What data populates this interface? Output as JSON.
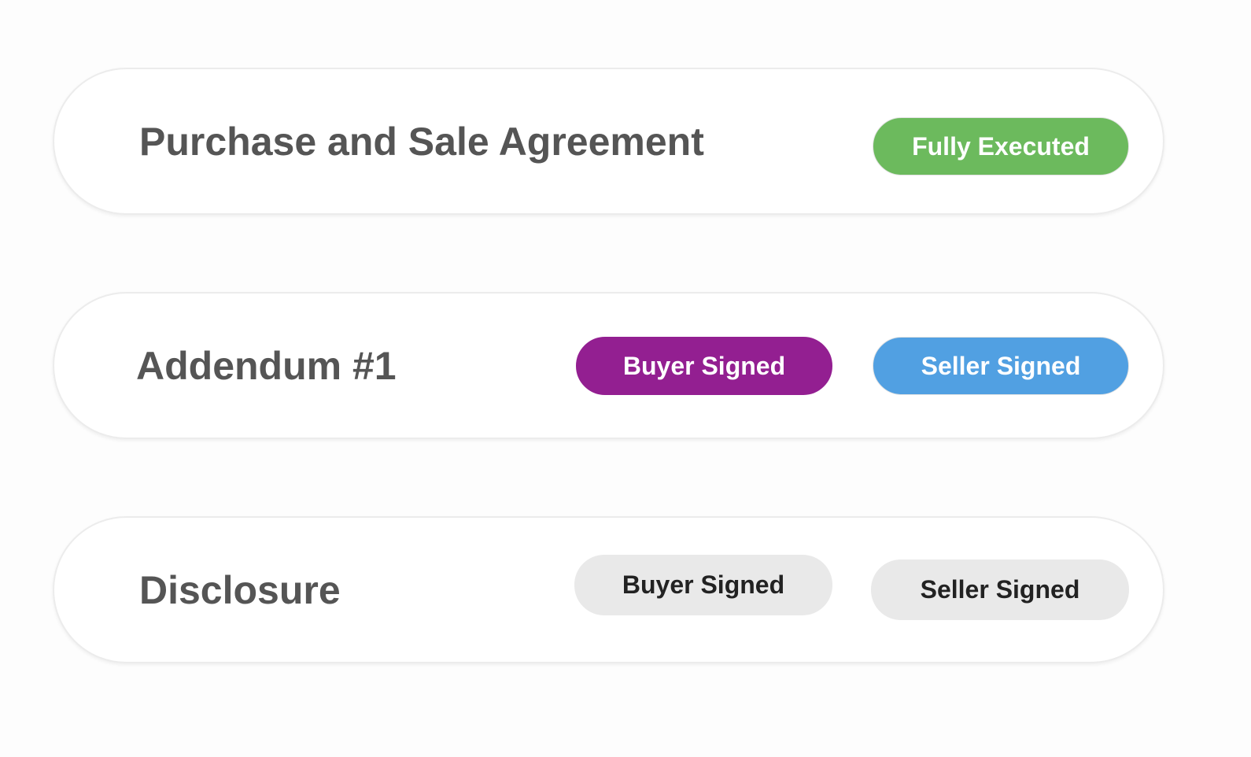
{
  "documents": [
    {
      "title": "Purchase and Sale Agreement",
      "badges": [
        {
          "label": "Fully Executed",
          "status": "complete",
          "color": "#6cba5d"
        }
      ]
    },
    {
      "title": "Addendum #1",
      "badges": [
        {
          "label": "Buyer Signed",
          "status": "signed",
          "color": "#931f91"
        },
        {
          "label": "Seller Signed",
          "status": "signed",
          "color": "#51a0e2"
        }
      ]
    },
    {
      "title": "Disclosure",
      "badges": [
        {
          "label": "Buyer Signed",
          "status": "pending",
          "color": "#e9e9e9"
        },
        {
          "label": "Seller Signed",
          "status": "pending",
          "color": "#e9e9e9"
        }
      ]
    }
  ]
}
